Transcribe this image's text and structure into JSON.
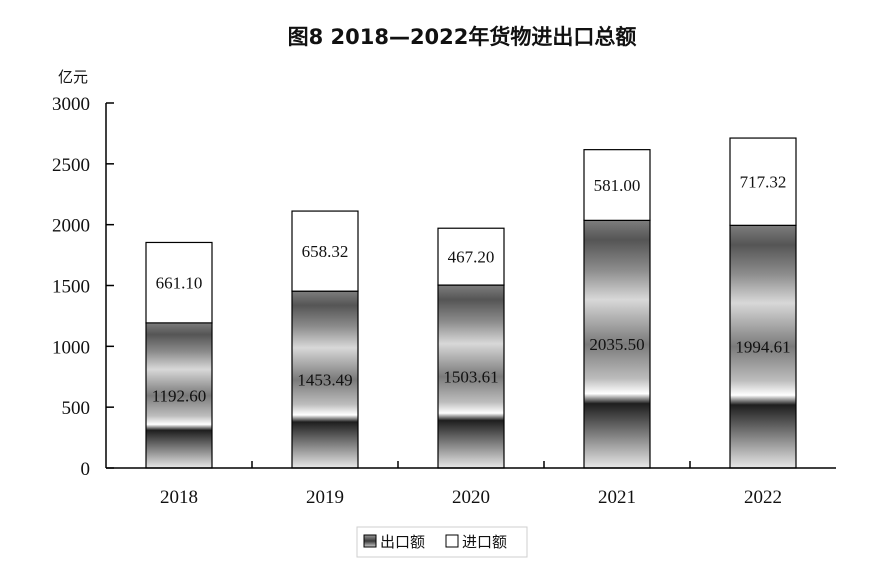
{
  "chart_data": {
    "type": "bar",
    "stacked": true,
    "title": "图8 2018—2022年货物进出口总额",
    "ylabel": "亿元",
    "xlabel": "",
    "categories": [
      "2018",
      "2019",
      "2020",
      "2021",
      "2022"
    ],
    "series": [
      {
        "name": "出口额",
        "values": [
          1192.6,
          1453.49,
          1503.61,
          2035.5,
          1994.61
        ],
        "value_labels": [
          "1192.60",
          "1453.49",
          "1503.61",
          "2035.50",
          "1994.61"
        ],
        "fill": "gradient-gray"
      },
      {
        "name": "进口额",
        "values": [
          661.1,
          658.32,
          467.2,
          581.0,
          717.32
        ],
        "value_labels": [
          "661.10",
          "658.32",
          "467.20",
          "581.00",
          "717.32"
        ],
        "fill": "#ffffff"
      }
    ],
    "ylim": [
      0,
      3000
    ],
    "yticks": [
      "0",
      "500",
      "1000",
      "1500",
      "2000",
      "2500",
      "3000"
    ],
    "grid": false,
    "legend": "bottom-center",
    "colors": {
      "axis": "#000000",
      "bar_border": "#000000",
      "import_fill": "#ffffff"
    }
  }
}
